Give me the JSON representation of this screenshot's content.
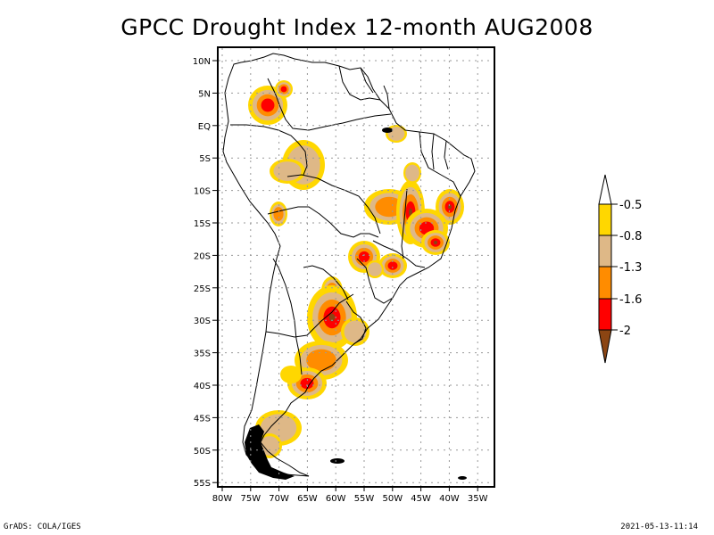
{
  "title": "GPCC Drought Index 12-month AUG2008",
  "map": {
    "region": "South America",
    "lon_range": [
      "80W",
      "33W"
    ],
    "lat_range": [
      "12N",
      "56S"
    ],
    "x_ticks": [
      "80W",
      "75W",
      "70W",
      "65W",
      "60W",
      "55W",
      "50W",
      "45W",
      "40W",
      "35W"
    ],
    "y_ticks": [
      "10N",
      "5N",
      "EQ",
      "5S",
      "10S",
      "15S",
      "20S",
      "25S",
      "30S",
      "35S",
      "40S",
      "45S",
      "50S",
      "55S"
    ],
    "grid": true
  },
  "colorbar": {
    "labels": [
      "-0.5",
      "-0.8",
      "-1.3",
      "-1.6",
      "-2"
    ],
    "colors": {
      "above": "#ffffff",
      "band1": "#ffd700",
      "band2": "#deb887",
      "band3": "#ff8c00",
      "band4": "#ff0000",
      "below": "#8b4513"
    }
  },
  "footer": {
    "left": "GrADS: COLA/IGES",
    "right": "2021-05-13-11:14"
  }
}
